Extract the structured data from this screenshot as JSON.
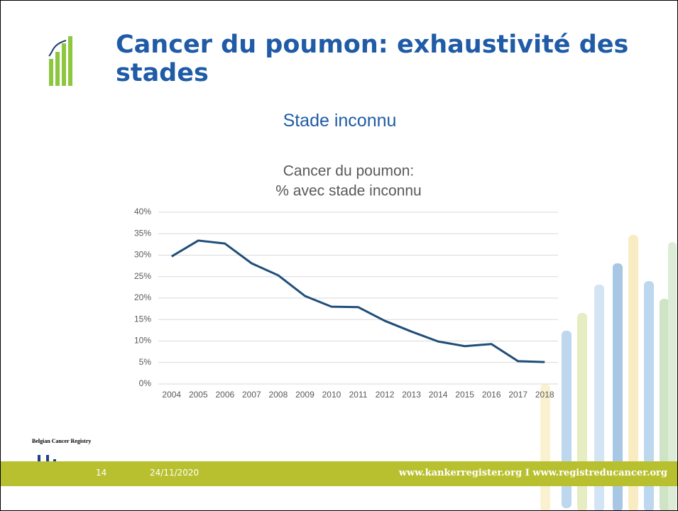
{
  "slide": {
    "title": "Cancer du poumon: exhaustivité des stades",
    "subtitle": "Stade inconnu",
    "logo_text": "Belgian Cancer Registry",
    "page_number": "14",
    "date": "24/11/2020",
    "websites": "www.kankerregister.org I www.registreducancer.org"
  },
  "chart_data": {
    "type": "line",
    "title": [
      "Cancer du poumon:",
      "% avec stade inconnu"
    ],
    "categories": [
      "2004",
      "2005",
      "2006",
      "2007",
      "2008",
      "2009",
      "2010",
      "2011",
      "2012",
      "2013",
      "2014",
      "2015",
      "2016",
      "2017",
      "2018"
    ],
    "series": [
      {
        "color": "#1f4e79",
        "values": [
          29.7,
          33.4,
          32.7,
          28.1,
          25.3,
          20.5,
          18.0,
          17.9,
          14.7,
          12.2,
          9.9,
          8.8,
          9.3,
          5.3,
          5.1
        ]
      }
    ],
    "ylim": [
      0,
      40
    ],
    "yticks": [
      {
        "value": 0,
        "label": "0%"
      },
      {
        "value": 5,
        "label": "5%"
      },
      {
        "value": 10,
        "label": "10%"
      },
      {
        "value": 15,
        "label": "15%"
      },
      {
        "value": 20,
        "label": "20%"
      },
      {
        "value": 25,
        "label": "25%"
      },
      {
        "value": 30,
        "label": "30%"
      },
      {
        "value": 35,
        "label": "35%"
      },
      {
        "value": 40,
        "label": "40%"
      }
    ],
    "grid": true
  }
}
